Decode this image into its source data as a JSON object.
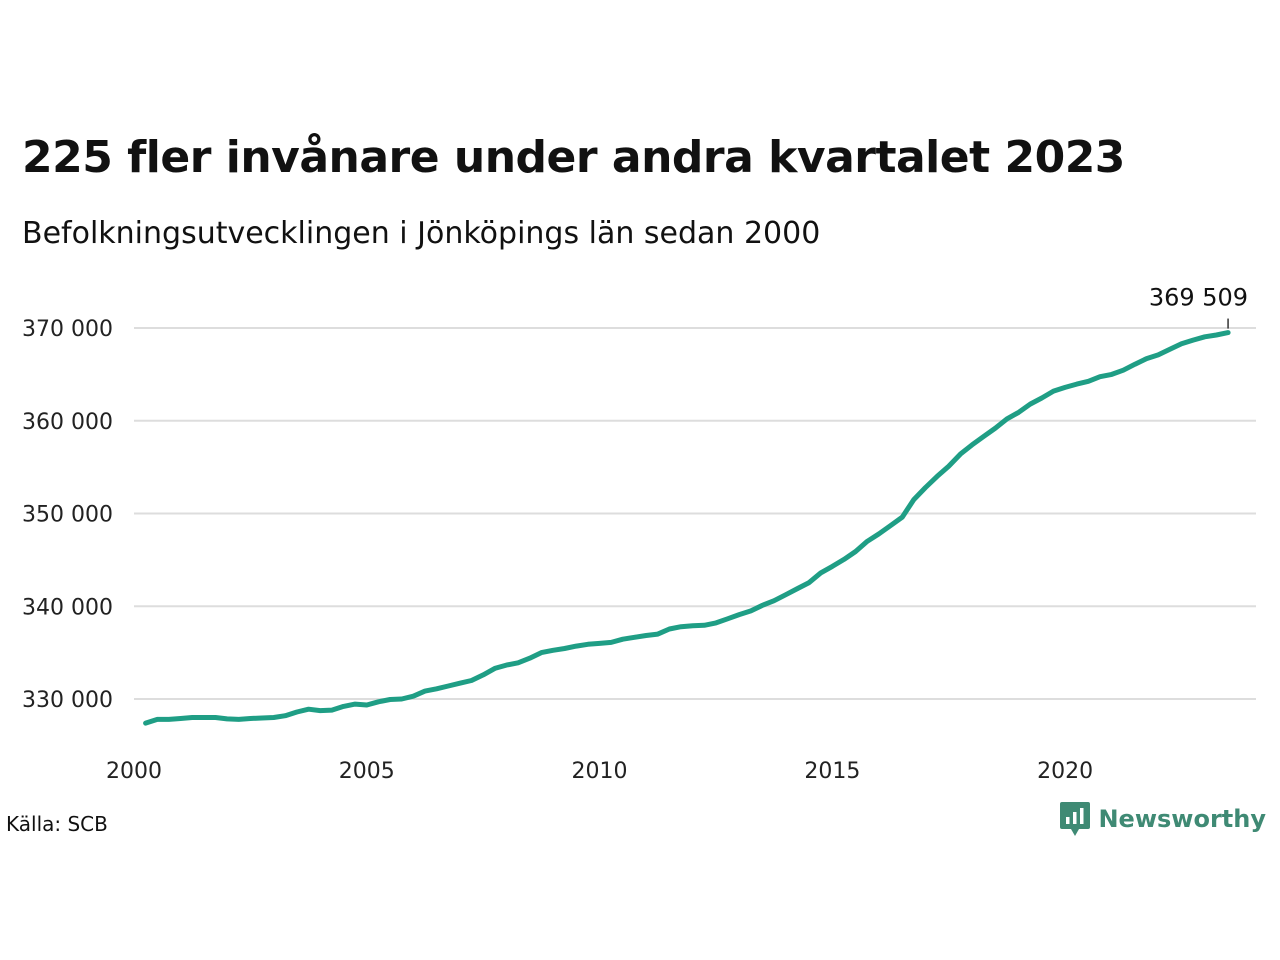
{
  "header": {
    "title": "225 fler invånare under andra kvartalet 2023",
    "subtitle": "Befolkningsutvecklingen i Jönköpings län sedan 2000"
  },
  "footer": {
    "source": "Källa: SCB",
    "brand": "Newsworthy"
  },
  "colors": {
    "line": "#1f9e85",
    "grid": "#dddddd",
    "brand": "#3f8a74"
  },
  "icons": {
    "brand_logo": "newsworthy-logo-icon"
  },
  "chart_data": {
    "type": "line",
    "title": "225 fler invånare under andra kvartalet 2023",
    "subtitle": "Befolkningsutvecklingen i Jönköpings län sedan 2000",
    "xlabel": "",
    "ylabel": "",
    "xlim": [
      2000,
      2024.5
    ],
    "ylim": [
      325000,
      373000
    ],
    "x_ticks": [
      2000,
      2005,
      2010,
      2015,
      2020
    ],
    "x_tick_labels": [
      "2000",
      "2005",
      "2010",
      "2015",
      "2020"
    ],
    "y_ticks": [
      330000,
      340000,
      350000,
      360000,
      370000
    ],
    "y_tick_labels": [
      "330 000",
      "340 000",
      "350 000",
      "360 000",
      "370 000"
    ],
    "grid": true,
    "legend": "none",
    "annotation": {
      "x": 2023.5,
      "y": 369509,
      "label": "369 509"
    },
    "series": [
      {
        "x": [
          2000.25,
          2000.5,
          2000.75,
          2001.0,
          2001.25,
          2001.5,
          2001.75,
          2002.0,
          2002.25,
          2002.5,
          2002.75,
          2003.0,
          2003.25,
          2003.5,
          2003.75,
          2004.0,
          2004.25,
          2004.5,
          2004.75,
          2005.0,
          2005.25,
          2005.5,
          2005.75,
          2006.0,
          2006.25,
          2006.5,
          2006.75,
          2007.0,
          2007.25,
          2007.5,
          2007.75,
          2008.0,
          2008.25,
          2008.5,
          2008.75,
          2009.0,
          2009.25,
          2009.5,
          2009.75,
          2010.0,
          2010.25,
          2010.5,
          2010.75,
          2011.0,
          2011.25,
          2011.5,
          2011.75,
          2012.0,
          2012.25,
          2012.5,
          2012.75,
          2013.0,
          2013.25,
          2013.5,
          2013.75,
          2014.0,
          2014.25,
          2014.5,
          2014.75,
          2015.0,
          2015.25,
          2015.5,
          2015.75,
          2016.0,
          2016.25,
          2016.5,
          2016.75,
          2017.0,
          2017.25,
          2017.5,
          2017.75,
          2018.0,
          2018.25,
          2018.5,
          2018.75,
          2019.0,
          2019.25,
          2019.5,
          2019.75,
          2020.0,
          2020.25,
          2020.5,
          2020.75,
          2021.0,
          2021.25,
          2021.5,
          2021.75,
          2022.0,
          2022.25,
          2022.5,
          2022.75,
          2023.0,
          2023.25,
          2023.5
        ],
        "values": [
          327400,
          327800,
          327800,
          327900,
          328000,
          328000,
          328000,
          327850,
          327800,
          327900,
          327950,
          328000,
          328200,
          328600,
          328900,
          328750,
          328800,
          329200,
          329450,
          329350,
          329700,
          329950,
          330000,
          330300,
          330850,
          331100,
          331400,
          331700,
          332000,
          332600,
          333300,
          333650,
          333900,
          334400,
          335000,
          335250,
          335450,
          335700,
          335900,
          336000,
          336100,
          336450,
          336650,
          336850,
          337000,
          337550,
          337800,
          337900,
          337950,
          338200,
          338650,
          339100,
          339500,
          340100,
          340600,
          341250,
          341900,
          342550,
          343600,
          344300,
          345050,
          345900,
          347000,
          347800,
          348700,
          349600,
          351500,
          352800,
          354000,
          355100,
          356400,
          357400,
          358300,
          359200,
          360200,
          360900,
          361800,
          362450,
          363200,
          363600,
          363950,
          364250,
          364750,
          365000,
          365450,
          366100,
          366700,
          367100,
          367700,
          368300,
          368700,
          369050,
          369250,
          369509
        ]
      }
    ]
  }
}
